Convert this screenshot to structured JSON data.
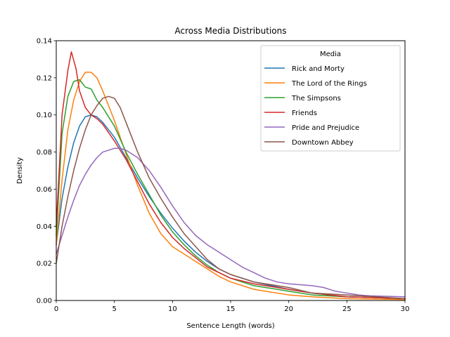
{
  "chart_data": {
    "type": "line",
    "title": "Across Media Distributions",
    "xlabel": "Sentence Length (words)",
    "ylabel": "Density",
    "xlim": [
      0,
      30
    ],
    "ylim": [
      0,
      0.14
    ],
    "x_ticks": [
      0,
      5,
      10,
      15,
      20,
      25,
      30
    ],
    "x_tick_labels": [
      "0",
      "5",
      "10",
      "15",
      "20",
      "25",
      "30"
    ],
    "y_ticks": [
      0,
      0.02,
      0.04,
      0.06,
      0.08,
      0.1,
      0.12,
      0.14
    ],
    "y_tick_labels": [
      "0.00",
      "0.02",
      "0.04",
      "0.06",
      "0.08",
      "0.10",
      "0.12",
      "0.14"
    ],
    "grid": false,
    "legend": {
      "title": "Media",
      "position": "top-right"
    },
    "series": [
      {
        "name": "Rick and Morty",
        "color": "#1f77b4",
        "points": [
          [
            0,
            0.03
          ],
          [
            0.5,
            0.055
          ],
          [
            1,
            0.072
          ],
          [
            1.5,
            0.085
          ],
          [
            2,
            0.094
          ],
          [
            2.5,
            0.099
          ],
          [
            3,
            0.1
          ],
          [
            3.5,
            0.099
          ],
          [
            4,
            0.096
          ],
          [
            5,
            0.088
          ],
          [
            6,
            0.077
          ],
          [
            7,
            0.066
          ],
          [
            8,
            0.056
          ],
          [
            9,
            0.047
          ],
          [
            10,
            0.039
          ],
          [
            11,
            0.032
          ],
          [
            12,
            0.026
          ],
          [
            13,
            0.021
          ],
          [
            14,
            0.017
          ],
          [
            15,
            0.014
          ],
          [
            17,
            0.01
          ],
          [
            20,
            0.006
          ],
          [
            22,
            0.004
          ],
          [
            25,
            0.002
          ],
          [
            30,
            0.001
          ]
        ]
      },
      {
        "name": "The Lord of the Rings",
        "color": "#ff7f0e",
        "points": [
          [
            0,
            0.03
          ],
          [
            0.5,
            0.065
          ],
          [
            1,
            0.092
          ],
          [
            1.5,
            0.108
          ],
          [
            2,
            0.118
          ],
          [
            2.5,
            0.123
          ],
          [
            3,
            0.123
          ],
          [
            3.5,
            0.12
          ],
          [
            4,
            0.113
          ],
          [
            5,
            0.097
          ],
          [
            6,
            0.079
          ],
          [
            7,
            0.062
          ],
          [
            8,
            0.047
          ],
          [
            9,
            0.036
          ],
          [
            10,
            0.029
          ],
          [
            11,
            0.025
          ],
          [
            12,
            0.021
          ],
          [
            13,
            0.017
          ],
          [
            14,
            0.013
          ],
          [
            15,
            0.01
          ],
          [
            17,
            0.006
          ],
          [
            20,
            0.003
          ],
          [
            22,
            0.002
          ],
          [
            25,
            0.001
          ],
          [
            30,
            0.0005
          ]
        ]
      },
      {
        "name": "The Simpsons",
        "color": "#2ca02c",
        "points": [
          [
            0,
            0.035
          ],
          [
            0.5,
            0.09
          ],
          [
            1,
            0.11
          ],
          [
            1.5,
            0.118
          ],
          [
            2,
            0.119
          ],
          [
            2.5,
            0.115
          ],
          [
            3,
            0.114
          ],
          [
            3.5,
            0.108
          ],
          [
            4,
            0.104
          ],
          [
            5,
            0.094
          ],
          [
            6,
            0.08
          ],
          [
            7,
            0.068
          ],
          [
            8,
            0.057
          ],
          [
            9,
            0.046
          ],
          [
            10,
            0.037
          ],
          [
            11,
            0.03
          ],
          [
            12,
            0.024
          ],
          [
            13,
            0.019
          ],
          [
            14,
            0.015
          ],
          [
            15,
            0.012
          ],
          [
            17,
            0.008
          ],
          [
            20,
            0.005
          ],
          [
            22,
            0.003
          ],
          [
            25,
            0.002
          ],
          [
            30,
            0.001
          ]
        ]
      },
      {
        "name": "Friends",
        "color": "#d62728",
        "points": [
          [
            0,
            0.04
          ],
          [
            0.5,
            0.1
          ],
          [
            1,
            0.124
          ],
          [
            1.3,
            0.134
          ],
          [
            1.7,
            0.125
          ],
          [
            2,
            0.113
          ],
          [
            2.5,
            0.104
          ],
          [
            3,
            0.1
          ],
          [
            3.5,
            0.098
          ],
          [
            4,
            0.095
          ],
          [
            5,
            0.086
          ],
          [
            6,
            0.076
          ],
          [
            7,
            0.064
          ],
          [
            8,
            0.052
          ],
          [
            9,
            0.042
          ],
          [
            10,
            0.034
          ],
          [
            11,
            0.028
          ],
          [
            12,
            0.023
          ],
          [
            13,
            0.018
          ],
          [
            14,
            0.015
          ],
          [
            15,
            0.012
          ],
          [
            17,
            0.009
          ],
          [
            20,
            0.006
          ],
          [
            22,
            0.004
          ],
          [
            25,
            0.002
          ],
          [
            30,
            0.001
          ]
        ]
      },
      {
        "name": "Pride and Prejudice",
        "color": "#9467bd",
        "points": [
          [
            0,
            0.025
          ],
          [
            0.5,
            0.035
          ],
          [
            1,
            0.045
          ],
          [
            1.5,
            0.054
          ],
          [
            2,
            0.062
          ],
          [
            2.5,
            0.068
          ],
          [
            3,
            0.073
          ],
          [
            3.5,
            0.077
          ],
          [
            4,
            0.08
          ],
          [
            4.5,
            0.081
          ],
          [
            5,
            0.082
          ],
          [
            5.5,
            0.082
          ],
          [
            6,
            0.081
          ],
          [
            7,
            0.077
          ],
          [
            8,
            0.07
          ],
          [
            9,
            0.061
          ],
          [
            10,
            0.051
          ],
          [
            11,
            0.042
          ],
          [
            12,
            0.035
          ],
          [
            13,
            0.03
          ],
          [
            14,
            0.026
          ],
          [
            15,
            0.022
          ],
          [
            16,
            0.018
          ],
          [
            17,
            0.015
          ],
          [
            18,
            0.012
          ],
          [
            19,
            0.01
          ],
          [
            20,
            0.009
          ],
          [
            22,
            0.008
          ],
          [
            23,
            0.007
          ],
          [
            24,
            0.005
          ],
          [
            25,
            0.004
          ],
          [
            26,
            0.003
          ],
          [
            27,
            0.0025
          ],
          [
            30,
            0.002
          ]
        ]
      },
      {
        "name": "Downtown Abbey",
        "color": "#8c564b",
        "points": [
          [
            0,
            0.02
          ],
          [
            0.5,
            0.04
          ],
          [
            1,
            0.056
          ],
          [
            1.5,
            0.07
          ],
          [
            2,
            0.082
          ],
          [
            2.5,
            0.092
          ],
          [
            3,
            0.1
          ],
          [
            3.5,
            0.105
          ],
          [
            4,
            0.109
          ],
          [
            4.5,
            0.11
          ],
          [
            5,
            0.109
          ],
          [
            5.5,
            0.104
          ],
          [
            6,
            0.096
          ],
          [
            7,
            0.08
          ],
          [
            8,
            0.066
          ],
          [
            9,
            0.055
          ],
          [
            10,
            0.045
          ],
          [
            11,
            0.036
          ],
          [
            12,
            0.029
          ],
          [
            13,
            0.022
          ],
          [
            14,
            0.017
          ],
          [
            15,
            0.014
          ],
          [
            17,
            0.01
          ],
          [
            18,
            0.009
          ],
          [
            20,
            0.007
          ],
          [
            22,
            0.004
          ],
          [
            25,
            0.003
          ],
          [
            30,
            0.001
          ]
        ]
      }
    ]
  }
}
